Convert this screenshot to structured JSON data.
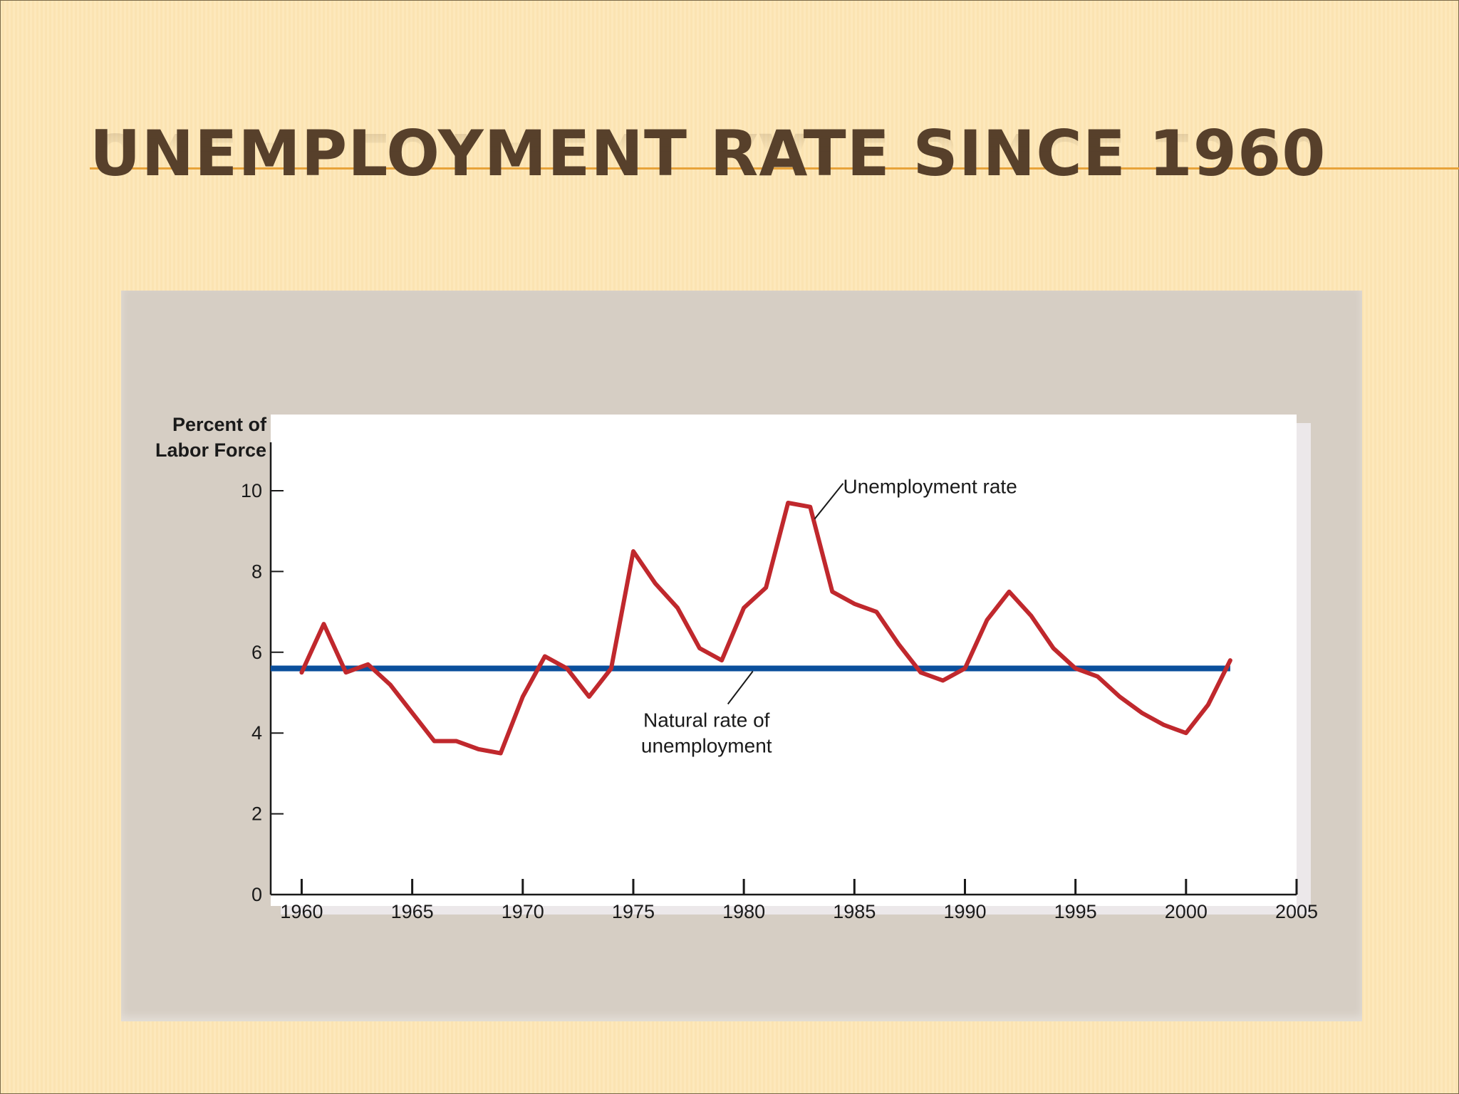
{
  "slide": {
    "title": "UNEMPLOYMENT RATE SINCE 1960"
  },
  "colors": {
    "background": "#fde8bb",
    "title": "#57402b",
    "title_rule": "#e8a33a",
    "panel": "#d6cec4",
    "unemployment_line": "#c0282d",
    "natural_rate_line": "#0b4f9c"
  },
  "chart_data": {
    "type": "line",
    "ylabel": [
      "Percent of",
      "Labor Force"
    ],
    "xlim": [
      1958.6,
      2005
    ],
    "ylim": [
      0,
      11.2
    ],
    "x_ticks": [
      1960,
      1965,
      1970,
      1975,
      1980,
      1985,
      1990,
      1995,
      2000,
      2005
    ],
    "y_ticks": [
      0,
      2,
      4,
      6,
      8,
      10
    ],
    "grid": false,
    "series": [
      {
        "name": "Unemployment rate",
        "x": [
          1960,
          1961,
          1962,
          1963,
          1964,
          1965,
          1966,
          1967,
          1968,
          1969,
          1970,
          1971,
          1972,
          1973,
          1974,
          1975,
          1976,
          1977,
          1978,
          1979,
          1980,
          1981,
          1982,
          1983,
          1984,
          1985,
          1986,
          1987,
          1988,
          1989,
          1990,
          1991,
          1992,
          1993,
          1994,
          1995,
          1996,
          1997,
          1998,
          1999,
          2000,
          2001,
          2002
        ],
        "y": [
          5.5,
          6.7,
          5.5,
          5.7,
          5.2,
          4.5,
          3.8,
          3.8,
          3.6,
          3.5,
          4.9,
          5.9,
          5.6,
          4.9,
          5.6,
          8.5,
          7.7,
          7.1,
          6.1,
          5.8,
          7.1,
          7.6,
          9.7,
          9.6,
          7.5,
          7.2,
          7.0,
          6.2,
          5.5,
          5.3,
          5.6,
          6.8,
          7.5,
          6.9,
          6.1,
          5.6,
          5.4,
          4.9,
          4.5,
          4.2,
          4.0,
          4.7,
          5.8
        ]
      },
      {
        "name": "Natural rate of unemployment",
        "x": [
          1958.6,
          2002
        ],
        "y": [
          5.6,
          5.6
        ]
      }
    ],
    "annotations": [
      {
        "text": "Unemployment rate",
        "points_to": [
          1983.2,
          9.3
        ]
      },
      {
        "text_lines": [
          "Natural rate of",
          "unemployment"
        ],
        "points_to": [
          1979.6,
          5.6
        ]
      }
    ]
  }
}
